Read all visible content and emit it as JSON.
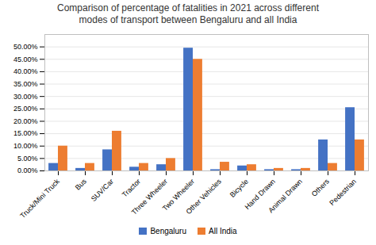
{
  "chart_data": {
    "type": "bar",
    "title": "Comparison of percentage of fatalities in 2021 across different\nmodes of transport between Bengaluru and all India",
    "categories": [
      "Truck/Mini Truck",
      "Bus",
      "SUV/Car",
      "Tractor",
      "Three Wheeler",
      "Two Wheeler",
      "Other Vehicles",
      "Bicycle",
      "Hand Drawn",
      "Animal Drawn",
      "Others",
      "Pedestrian"
    ],
    "series": [
      {
        "name": "Bengaluru",
        "color": "#4472c4",
        "values": [
          3.0,
          1.0,
          8.5,
          1.5,
          2.5,
          49.5,
          0.5,
          2.0,
          0.5,
          0.5,
          12.5,
          25.5
        ]
      },
      {
        "name": "All India",
        "color": "#ed7d31",
        "values": [
          10.0,
          3.0,
          16.0,
          3.0,
          5.0,
          45.0,
          3.5,
          2.5,
          1.0,
          1.0,
          3.0,
          12.5
        ]
      }
    ],
    "ylim": [
      0,
      55
    ],
    "yticks": [
      {
        "value": 0,
        "label": "0.00%"
      },
      {
        "value": 5,
        "label": "5.00%"
      },
      {
        "value": 10,
        "label": "10.00%"
      },
      {
        "value": 15,
        "label": "15.00%"
      },
      {
        "value": 20,
        "label": "20.00%"
      },
      {
        "value": 25,
        "label": "25.00%"
      },
      {
        "value": 30,
        "label": "30.00%"
      },
      {
        "value": 35,
        "label": "35.00%"
      },
      {
        "value": 40,
        "label": "40.00%"
      },
      {
        "value": 45,
        "label": "45.00%"
      },
      {
        "value": 50,
        "label": "50.00%"
      }
    ],
    "grid": true,
    "legend": "bottom"
  }
}
